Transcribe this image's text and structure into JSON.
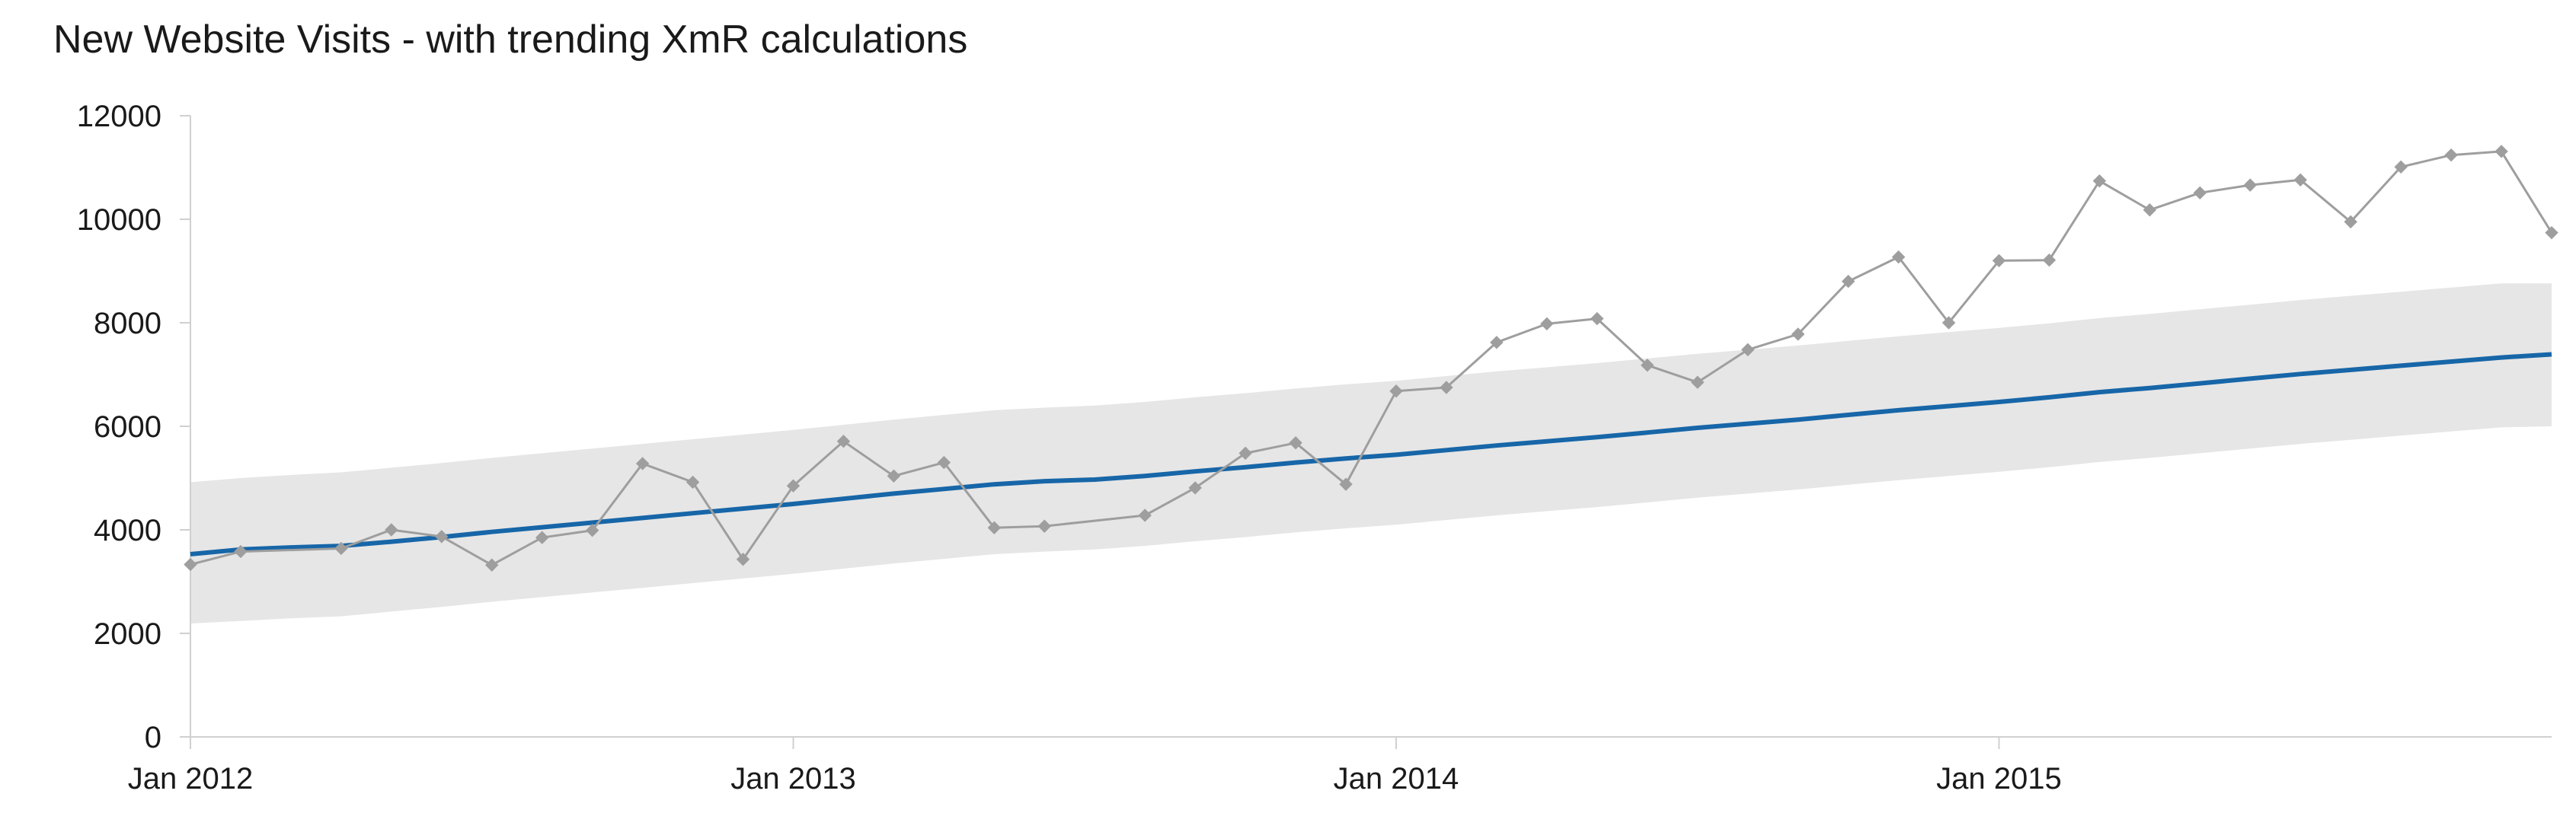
{
  "chart_data": {
    "type": "line",
    "title": "New Website Visits - with trending XmR calculations",
    "xlabel": "",
    "ylabel": "",
    "ylim": [
      0,
      12000
    ],
    "yticks": [
      0,
      2000,
      4000,
      6000,
      8000,
      10000,
      12000
    ],
    "x_ticks": [
      "Jan 2012",
      "Jan 2013",
      "Jan 2014",
      "Jan 2015"
    ],
    "grid": false,
    "legend": "none",
    "x": [
      "2012-01",
      "2012-02",
      "2012-03",
      "2012-04",
      "2012-05",
      "2012-06",
      "2012-07",
      "2012-08",
      "2012-09",
      "2012-10",
      "2012-11",
      "2012-12",
      "2013-01",
      "2013-02",
      "2013-03",
      "2013-04",
      "2013-05",
      "2013-06",
      "2013-07",
      "2013-08",
      "2013-09",
      "2013-10",
      "2013-11",
      "2013-12",
      "2014-01",
      "2014-02",
      "2014-03",
      "2014-04",
      "2014-05",
      "2014-06",
      "2014-07",
      "2014-08",
      "2014-09",
      "2014-10",
      "2014-11",
      "2014-12",
      "2015-01",
      "2015-02",
      "2015-03",
      "2015-04",
      "2015-05",
      "2015-06",
      "2015-07",
      "2015-08",
      "2015-09",
      "2015-10",
      "2015-11",
      "2015-12"
    ],
    "series": [
      {
        "role": "visits",
        "color": "#9e9e9e",
        "values": [
          3330,
          3580,
          null,
          3640,
          4000,
          3870,
          3320,
          3850,
          3990,
          5280,
          4920,
          3430,
          4850,
          5710,
          5040,
          5300,
          4040,
          4070,
          null,
          4280,
          4810,
          5480,
          5680,
          4880,
          6680,
          6750,
          7620,
          7980,
          8080,
          7180,
          6850,
          7480,
          7780,
          8800,
          9270,
          8000,
          9200,
          9210,
          10740,
          10180,
          10510,
          10660,
          10760,
          9950,
          11010,
          11240,
          11310,
          9740
        ]
      },
      {
        "role": "trend",
        "color": "#1766a8",
        "values": [
          3530,
          3620,
          3660,
          3690,
          3770,
          3860,
          3960,
          4050,
          4140,
          4230,
          4320,
          4410,
          4500,
          4600,
          4700,
          4790,
          4880,
          4940,
          4970,
          5040,
          5130,
          5210,
          5300,
          5380,
          5450,
          5540,
          5630,
          5710,
          5790,
          5880,
          5970,
          6050,
          6130,
          6220,
          6310,
          6390,
          6470,
          6560,
          6660,
          6740,
          6830,
          6920,
          7010,
          7090,
          7170,
          7250,
          7330,
          7390
        ]
      },
      {
        "role": "upper-limit",
        "color": "#e6e6e6",
        "values": [
          4920,
          5000,
          5060,
          5110,
          5200,
          5290,
          5390,
          5480,
          5570,
          5660,
          5750,
          5840,
          5930,
          6030,
          6130,
          6220,
          6310,
          6360,
          6400,
          6470,
          6560,
          6640,
          6730,
          6810,
          6880,
          6970,
          7060,
          7140,
          7220,
          7310,
          7400,
          7480,
          7560,
          7650,
          7740,
          7820,
          7900,
          7990,
          8090,
          8170,
          8260,
          8350,
          8440,
          8520,
          8600,
          8680,
          8760,
          8760
        ]
      },
      {
        "role": "lower-limit",
        "color": "#e6e6e6",
        "values": [
          2190,
          2240,
          2290,
          2330,
          2420,
          2510,
          2610,
          2700,
          2790,
          2880,
          2970,
          3060,
          3150,
          3250,
          3350,
          3440,
          3530,
          3580,
          3620,
          3690,
          3780,
          3860,
          3950,
          4030,
          4100,
          4190,
          4280,
          4360,
          4440,
          4530,
          4620,
          4700,
          4780,
          4870,
          4960,
          5040,
          5120,
          5210,
          5310,
          5390,
          5480,
          5570,
          5660,
          5740,
          5820,
          5900,
          5980,
          6000
        ]
      }
    ]
  }
}
